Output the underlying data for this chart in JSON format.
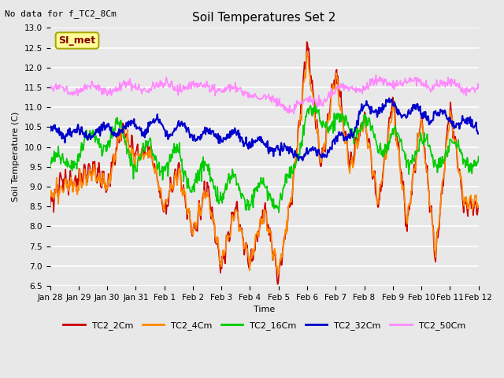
{
  "title": "Soil Temperatures Set 2",
  "no_data_label": "No data for f_TC2_8Cm",
  "ylabel": "Soil Temperature (C)",
  "xlabel": "Time",
  "annotation_label": "SI_met",
  "ylim": [
    6.5,
    13.0
  ],
  "yticks": [
    6.5,
    7.0,
    7.5,
    8.0,
    8.5,
    9.0,
    9.5,
    10.0,
    10.5,
    11.0,
    11.5,
    12.0,
    12.5,
    13.0
  ],
  "xtick_labels": [
    "Jan 28",
    "Jan 29",
    "Jan 30",
    "Jan 31",
    "Feb 1",
    "Feb 2",
    "Feb 3",
    "Feb 4",
    "Feb 5",
    "Feb 6",
    "Feb 7",
    "Feb 8",
    "Feb 9",
    "Feb 10",
    "Feb 11",
    "Feb 12"
  ],
  "series_colors": [
    "#cc0000",
    "#ff8800",
    "#00cc00",
    "#0000cc",
    "#ff88ff"
  ],
  "series_names": [
    "TC2_2Cm",
    "TC2_4Cm",
    "TC2_16Cm",
    "TC2_32Cm",
    "TC2_50Cm"
  ],
  "line_widths": [
    1.2,
    1.2,
    1.2,
    1.5,
    1.2
  ],
  "bg_color": "#e8e8e8",
  "plot_bg_color": "#e8e8e8",
  "grid_color": "#ffffff",
  "annotation_bg": "#ffff99",
  "annotation_border": "#aaa800",
  "title_fontsize": 11,
  "axis_fontsize": 8,
  "tick_fontsize": 7.5
}
